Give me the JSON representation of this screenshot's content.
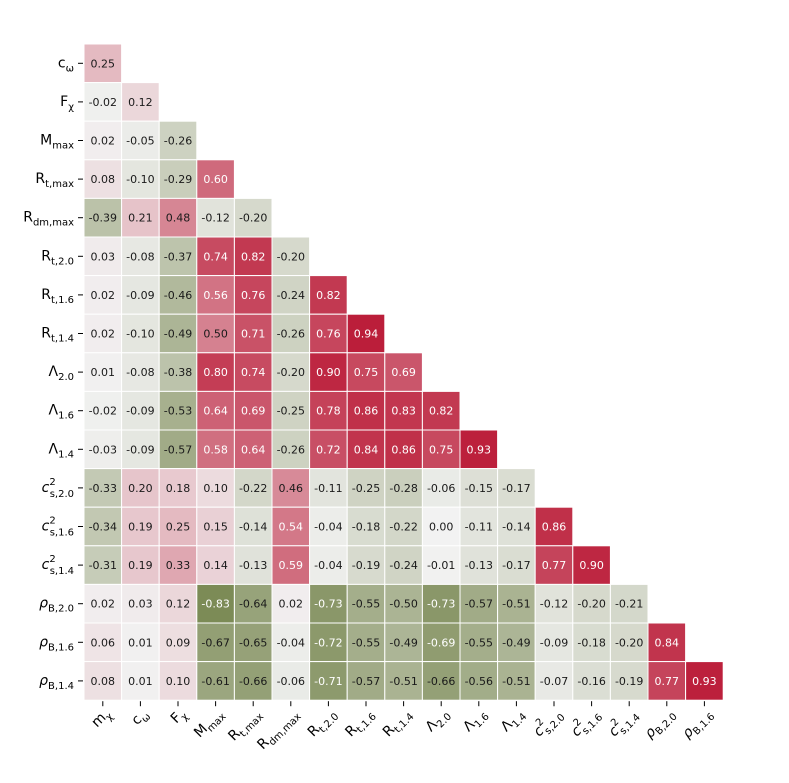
{
  "chart_data": {
    "type": "heatmap",
    "subtype": "lower-triangular-correlation-matrix",
    "row_labels": [
      "c_ω",
      "F_χ",
      "M_max",
      "R_t,max",
      "R_dm,max",
      "R_t,2.0",
      "R_t,1.6",
      "R_t,1.4",
      "Λ_2.0",
      "Λ_1.6",
      "Λ_1.4",
      "c_s,2.0^2",
      "c_s,1.6^2",
      "c_s,1.4^2",
      "ρ_B,2.0",
      "ρ_B,1.6",
      "ρ_B,1.4"
    ],
    "col_labels": [
      "m_χ",
      "c_ω",
      "F_χ",
      "M_max",
      "R_t,max",
      "R_dm,max",
      "R_t,2.0",
      "R_t,1.6",
      "R_t,1.4",
      "Λ_2.0",
      "Λ_1.6",
      "Λ_1.4",
      "c_s,2.0^2",
      "c_s,1.6^2",
      "c_s,1.4^2",
      "ρ_B,2.0",
      "ρ_B,1.6"
    ],
    "values": [
      [
        0.25
      ],
      [
        -0.02,
        0.12
      ],
      [
        0.02,
        -0.05,
        -0.26
      ],
      [
        0.08,
        -0.1,
        -0.29,
        0.6
      ],
      [
        -0.39,
        0.21,
        0.48,
        -0.12,
        -0.2
      ],
      [
        0.03,
        -0.08,
        -0.37,
        0.74,
        0.82,
        -0.2
      ],
      [
        0.02,
        -0.09,
        -0.46,
        0.56,
        0.76,
        -0.24,
        0.82
      ],
      [
        0.02,
        -0.1,
        -0.49,
        0.5,
        0.71,
        -0.26,
        0.76,
        0.94
      ],
      [
        0.01,
        -0.08,
        -0.38,
        0.8,
        0.74,
        -0.2,
        0.9,
        0.75,
        0.69
      ],
      [
        -0.02,
        -0.09,
        -0.53,
        0.64,
        0.69,
        -0.25,
        0.78,
        0.86,
        0.83,
        0.82
      ],
      [
        -0.03,
        -0.09,
        -0.57,
        0.58,
        0.64,
        -0.26,
        0.72,
        0.84,
        0.86,
        0.75,
        0.93
      ],
      [
        -0.33,
        0.2,
        0.18,
        0.1,
        -0.22,
        0.46,
        -0.11,
        -0.25,
        -0.28,
        -0.06,
        -0.15,
        -0.17
      ],
      [
        -0.34,
        0.19,
        0.25,
        0.15,
        -0.14,
        0.54,
        -0.04,
        -0.18,
        -0.22,
        0.0,
        -0.11,
        -0.14,
        0.86
      ],
      [
        -0.31,
        0.19,
        0.33,
        0.14,
        -0.13,
        0.59,
        -0.04,
        -0.19,
        -0.24,
        -0.01,
        -0.13,
        -0.17,
        0.77,
        0.9
      ],
      [
        0.02,
        0.03,
        0.12,
        -0.83,
        -0.64,
        0.02,
        -0.73,
        -0.55,
        -0.5,
        -0.73,
        -0.57,
        -0.51,
        -0.12,
        -0.2,
        -0.21
      ],
      [
        0.06,
        0.01,
        0.09,
        -0.67,
        -0.65,
        -0.04,
        -0.72,
        -0.55,
        -0.49,
        -0.69,
        -0.55,
        -0.49,
        -0.09,
        -0.18,
        -0.2,
        0.84
      ],
      [
        0.08,
        0.01,
        0.1,
        -0.61,
        -0.66,
        -0.06,
        -0.71,
        -0.57,
        -0.51,
        -0.66,
        -0.56,
        -0.51,
        -0.07,
        -0.16,
        -0.19,
        0.77,
        0.93
      ]
    ],
    "value_range": [
      -1,
      1
    ],
    "colormap": {
      "negative": "#647636",
      "neutral": "#f2f2f2",
      "positive": "#b8102e"
    },
    "annotated": true,
    "grid": false,
    "legend": "none"
  }
}
